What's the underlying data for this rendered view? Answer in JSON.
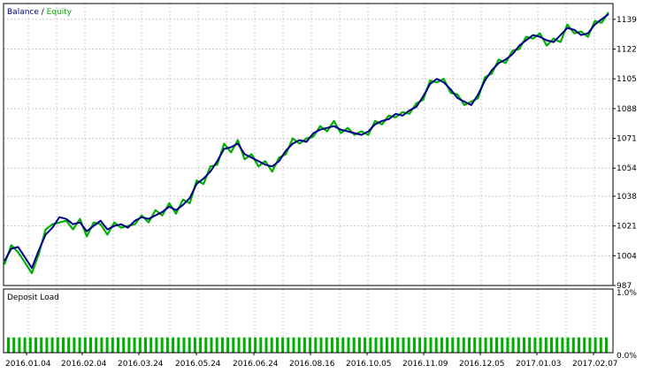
{
  "colors": {
    "background": "#ffffff",
    "frame": "#000000",
    "grid": "#c8c8c8",
    "balance": "#00008b",
    "equity": "#00b000",
    "deposit_load": "#00b000"
  },
  "chart_data": [
    {
      "type": "line",
      "legend": {
        "balance_label": "Balance",
        "separator": " / ",
        "equity_label": "Equity",
        "position": "top-left"
      },
      "y_ticks": [
        "1139",
        "1122",
        "1105",
        "1088",
        "1071",
        "1054",
        "1038",
        "1021",
        "1004",
        "987"
      ],
      "ylim": [
        987,
        1148
      ],
      "grid": true,
      "series": [
        {
          "name": "Balance",
          "y": [
            1001,
            1008,
            1009,
            1003,
            997,
            1007,
            1016,
            1020,
            1026,
            1025,
            1022,
            1023,
            1018,
            1021,
            1024,
            1019,
            1021,
            1022,
            1020,
            1024,
            1026,
            1025,
            1027,
            1029,
            1032,
            1030,
            1033,
            1037,
            1045,
            1048,
            1052,
            1058,
            1065,
            1066,
            1068,
            1062,
            1060,
            1058,
            1056,
            1055,
            1058,
            1064,
            1068,
            1070,
            1069,
            1074,
            1076,
            1077,
            1078,
            1076,
            1075,
            1074,
            1073,
            1075,
            1079,
            1081,
            1082,
            1085,
            1084,
            1087,
            1089,
            1095,
            1102,
            1105,
            1103,
            1099,
            1094,
            1092,
            1090,
            1096,
            1104,
            1110,
            1114,
            1116,
            1119,
            1124,
            1127,
            1130,
            1129,
            1127,
            1126,
            1130,
            1134,
            1133,
            1130,
            1131,
            1136,
            1139,
            1142
          ]
        },
        {
          "name": "Equity",
          "y": [
            999,
            1010,
            1006,
            1000,
            994,
            1005,
            1019,
            1022,
            1023,
            1024,
            1019,
            1025,
            1015,
            1023,
            1022,
            1016,
            1023,
            1020,
            1021,
            1022,
            1027,
            1023,
            1030,
            1027,
            1034,
            1028,
            1036,
            1034,
            1047,
            1045,
            1055,
            1056,
            1068,
            1063,
            1070,
            1059,
            1062,
            1055,
            1058,
            1052,
            1060,
            1062,
            1071,
            1068,
            1071,
            1072,
            1078,
            1075,
            1081,
            1074,
            1077,
            1073,
            1075,
            1073,
            1081,
            1079,
            1084,
            1083,
            1086,
            1085,
            1091,
            1093,
            1104,
            1103,
            1105,
            1097,
            1096,
            1090,
            1092,
            1094,
            1106,
            1108,
            1116,
            1114,
            1121,
            1122,
            1129,
            1128,
            1131,
            1124,
            1128,
            1126,
            1136,
            1131,
            1132,
            1129,
            1138,
            1137,
            1143
          ]
        }
      ]
    },
    {
      "type": "bar",
      "title": "Deposit Load",
      "y_ticks": [
        "1.0%",
        "0.0%"
      ],
      "ylim": [
        0,
        1.0
      ],
      "x_ticks": [
        "2016.01.04",
        "2016.02.04",
        "2016.03.24",
        "2016.05.24",
        "2016.06.24",
        "2016.08.16",
        "2016.10.05",
        "2016.11.09",
        "2016.12.05",
        "2017.01.03",
        "2017.02.07"
      ],
      "values": [
        0.24,
        0.24,
        0.24,
        0.24,
        0.24,
        0.24,
        0.24,
        0.24,
        0.24,
        0.24,
        0.24,
        0.24,
        0.24,
        0.24,
        0.24,
        0.24,
        0.24,
        0.24,
        0.24,
        0.24,
        0.24,
        0.24,
        0.24,
        0.24,
        0.24,
        0.24,
        0.24,
        0.24,
        0.24,
        0.24,
        0.24,
        0.24,
        0.24,
        0.24,
        0.24,
        0.24,
        0.24,
        0.24,
        0.24,
        0.24,
        0.24,
        0.24,
        0.24,
        0.24,
        0.24,
        0.24,
        0.24,
        0.24,
        0.24,
        0.24,
        0.24,
        0.24,
        0.24,
        0.24,
        0.24,
        0.24,
        0.24,
        0.24,
        0.24,
        0.24,
        0.24,
        0.24,
        0.24,
        0.24,
        0.24,
        0.24,
        0.24,
        0.24,
        0.24,
        0.24,
        0.24,
        0.24,
        0.24,
        0.24,
        0.24,
        0.24,
        0.24,
        0.24,
        0.24,
        0.24,
        0.24,
        0.24,
        0.24,
        0.24,
        0.24,
        0.24,
        0.24,
        0.24,
        0.24,
        0.24,
        0.24,
        0.24,
        0.24,
        0.24,
        0.24,
        0.24,
        0.24,
        0.24,
        0.24,
        0.24,
        0.24,
        0.24,
        0.24,
        0.24,
        0.24,
        0.24,
        0.24,
        0.24,
        0.24,
        0.24
      ]
    }
  ]
}
